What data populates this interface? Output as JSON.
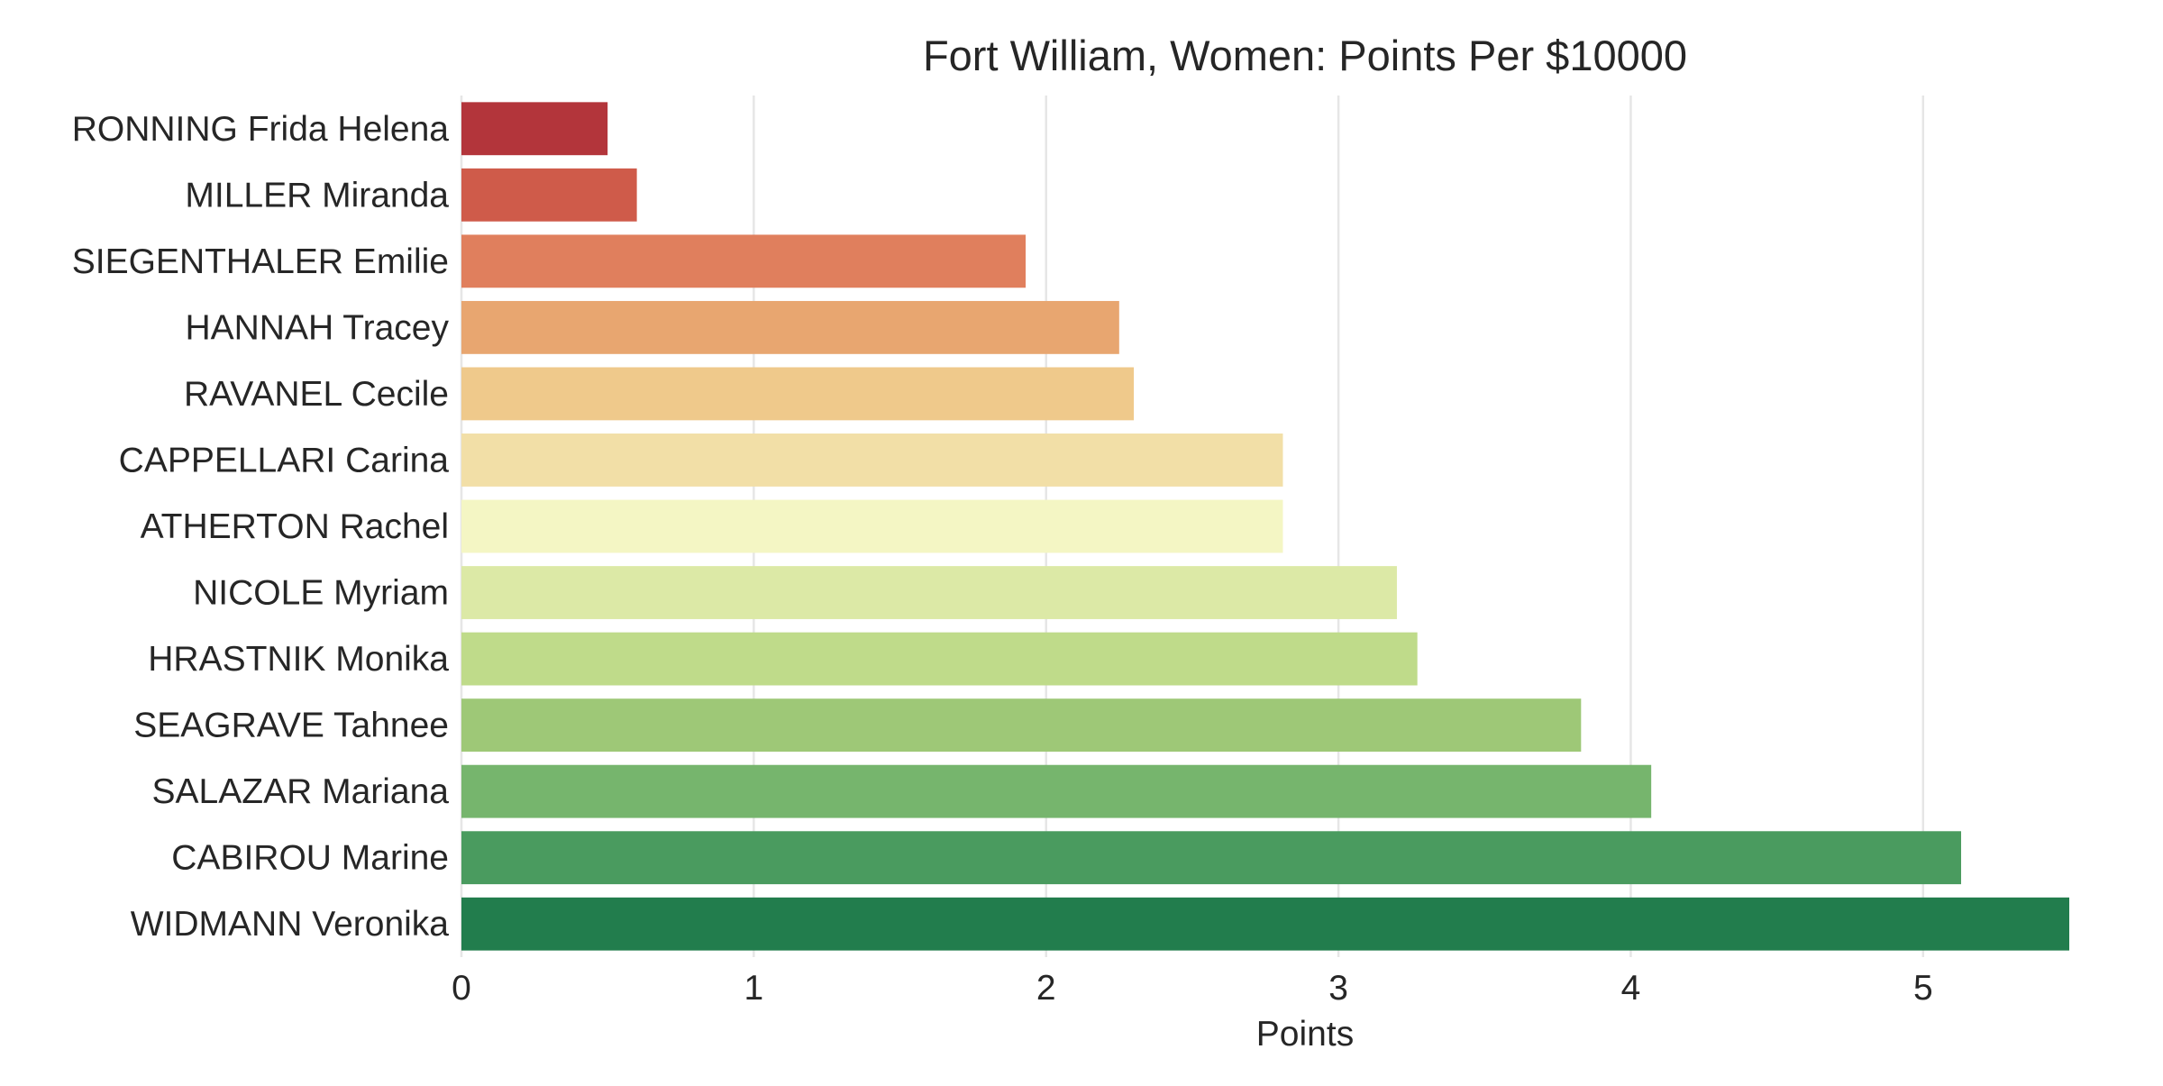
{
  "chart_data": {
    "type": "bar",
    "orientation": "horizontal",
    "title": "Fort William, Women: Points Per $10000",
    "xlabel": "Points",
    "ylabel": "",
    "xlim": [
      0,
      5.5
    ],
    "xticks": [
      0,
      1,
      2,
      3,
      4,
      5
    ],
    "grid": "vertical",
    "categories": [
      "RONNING Frida Helena",
      "MILLER Miranda",
      "SIEGENTHALER Emilie",
      "HANNAH Tracey",
      "RAVANEL Cecile",
      "CAPPELLARI Carina",
      "ATHERTON Rachel",
      "NICOLE Myriam",
      "HRASTNIK Monika",
      "SEAGRAVE Tahnee",
      "SALAZAR Mariana",
      "CABIROU Marine",
      "WIDMANN Veronika"
    ],
    "values": [
      0.5,
      0.6,
      1.93,
      2.25,
      2.3,
      2.81,
      2.81,
      3.2,
      3.27,
      3.83,
      4.07,
      5.13,
      5.5
    ],
    "colors": [
      "#b3353b",
      "#cf5b4a",
      "#e07f5d",
      "#e8a670",
      "#efc98b",
      "#f2dfa7",
      "#f4f6c4",
      "#dce9a6",
      "#bfdb8a",
      "#9ec877",
      "#76b56d",
      "#4a9b5f",
      "#227d4d"
    ]
  }
}
